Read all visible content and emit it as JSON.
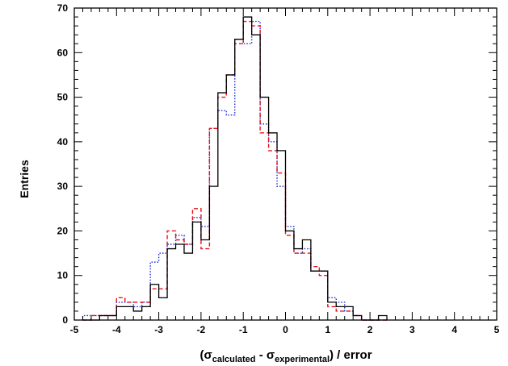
{
  "chart_data": {
    "type": "histogram",
    "ylabel": "Entries",
    "xlabel": {
      "open": "(",
      "sym1": "σ",
      "sub1": "calculated",
      "minus": " - ",
      "sym2": "σ",
      "sub2": "experimental",
      "close": ") / error"
    },
    "xlim": [
      -5,
      5
    ],
    "ylim": [
      0,
      70
    ],
    "xticks": [
      "-5",
      "-4",
      "-3",
      "-2",
      "-1",
      "0",
      "1",
      "2",
      "3",
      "4",
      "5"
    ],
    "yticks": [
      "0",
      "10",
      "20",
      "30",
      "40",
      "50",
      "60",
      "70"
    ],
    "bin_edges": [
      -4.8,
      -4.6,
      -4.4,
      -4.2,
      -4.0,
      -3.8,
      -3.6,
      -3.4,
      -3.2,
      -3.0,
      -2.8,
      -2.6,
      -2.4,
      -2.2,
      -2.0,
      -1.8,
      -1.6,
      -1.4,
      -1.2,
      -1.0,
      -0.8,
      -0.6,
      -0.4,
      -0.2,
      0.0,
      0.2,
      0.4,
      0.6,
      0.8,
      1.0,
      1.2,
      1.4,
      1.6,
      1.8,
      2.0,
      2.2,
      2.4
    ],
    "series": [
      {
        "style": "solid",
        "color": "#000000",
        "values": [
          0,
          0,
          1,
          1,
          3,
          3,
          2,
          3,
          8,
          5,
          16,
          17,
          15,
          22,
          18,
          30,
          51,
          55,
          63,
          68,
          64,
          50,
          42,
          38,
          20,
          16,
          18,
          11,
          11,
          4,
          3,
          3,
          1,
          0,
          0,
          1
        ]
      },
      {
        "style": "dashed",
        "color": "#e8141d",
        "values": [
          0,
          1,
          1,
          1,
          5,
          4,
          4,
          4,
          7,
          7,
          20,
          18,
          17,
          25,
          16,
          43,
          50,
          55,
          62,
          67,
          66,
          42,
          38,
          33,
          19,
          15,
          15,
          12,
          10,
          3,
          2,
          2,
          1,
          0,
          0,
          0
        ]
      },
      {
        "style": "dotted",
        "color": "#1a2bd4",
        "values": [
          1,
          1,
          1,
          1,
          4,
          4,
          3,
          4,
          13,
          15,
          17,
          19,
          17,
          23,
          21,
          43,
          47,
          46,
          63,
          62,
          67,
          44,
          40,
          30,
          21,
          15,
          16,
          11,
          11,
          5,
          4,
          2,
          1,
          0,
          0,
          0
        ]
      }
    ]
  }
}
